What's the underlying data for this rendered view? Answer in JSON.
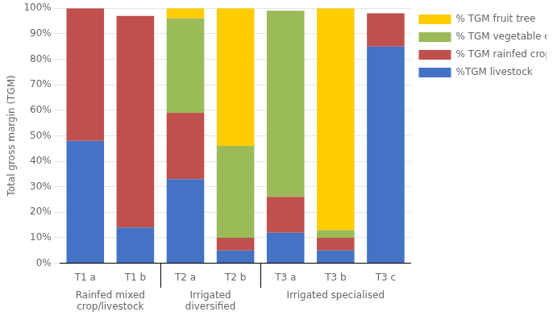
{
  "chart_data": {
    "type": "bar",
    "stacked": true,
    "categories": [
      "T1 a",
      "T1 b",
      "T2 a",
      "T2 b",
      "T3 a",
      "T3 b",
      "T3 c"
    ],
    "series": [
      {
        "name": "%TGM livestock",
        "color": "#4472C4",
        "values": [
          48,
          14,
          33,
          5,
          12,
          5,
          85
        ]
      },
      {
        "name": "% TGM rainfed crops",
        "color": "#C0504D",
        "values": [
          52,
          83,
          26,
          5,
          14,
          5,
          13
        ]
      },
      {
        "name": "% TGM vegetable crops",
        "color": "#9BBB59",
        "values": [
          0,
          0,
          37,
          36,
          73,
          3,
          0
        ]
      },
      {
        "name": "% TGM fruit tree",
        "color": "#FFCC00",
        "values": [
          0,
          0,
          4,
          54,
          0,
          87,
          0
        ]
      }
    ],
    "ylabel": "Total gross margin (TGM)",
    "ylim": [
      0,
      100
    ],
    "yticks": [
      {
        "value": 0,
        "label": "0%"
      },
      {
        "value": 10,
        "label": "10%"
      },
      {
        "value": 20,
        "label": "20%"
      },
      {
        "value": 30,
        "label": "30%"
      },
      {
        "value": 40,
        "label": "40%"
      },
      {
        "value": 50,
        "label": "50%"
      },
      {
        "value": 60,
        "label": "60%"
      },
      {
        "value": 70,
        "label": "70%"
      },
      {
        "value": 80,
        "label": "80%"
      },
      {
        "value": 90,
        "label": "90%"
      },
      {
        "value": 100,
        "label": "100%"
      }
    ],
    "grid": true,
    "legend": "right",
    "annotations": [
      {
        "text": "Rainfed mixed\ncrop/livestock",
        "categories": [
          "T1 a",
          "T1 b"
        ]
      },
      {
        "text": "Irrigated\ndiversified",
        "categories": [
          "T2 a",
          "T2 b"
        ]
      },
      {
        "text": "Irrigated specialised",
        "categories": [
          "T3 a",
          "T3 b",
          "T3 c"
        ]
      }
    ]
  }
}
